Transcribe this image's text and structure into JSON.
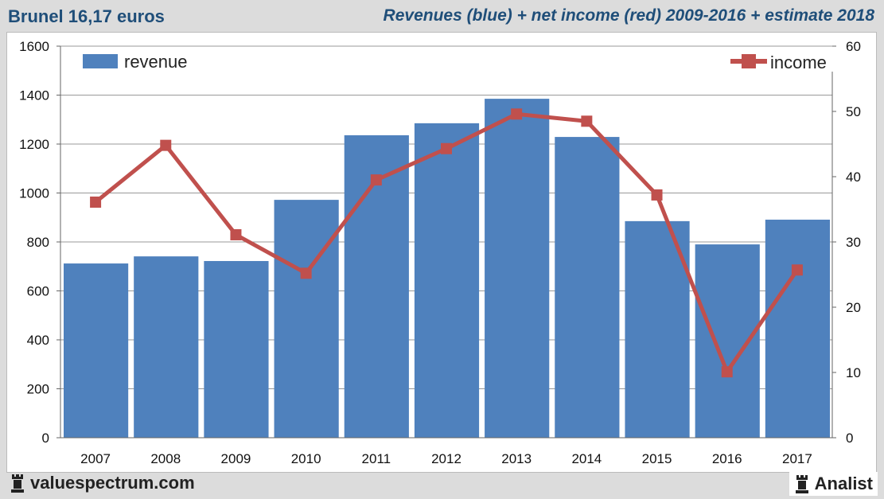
{
  "header": {
    "left": "Brunel 16,17 euros",
    "right": "Revenues (blue) + net income (red) 2009-2016 + estimate 2018"
  },
  "footer": {
    "site": "valuespectrum.com",
    "brand": "Analist"
  },
  "chart_data": {
    "type": "bar+line",
    "title": "Revenues (blue) + net income (red) 2009-2016 + estimate 2018",
    "categories": [
      "2007",
      "2008",
      "2009",
      "2010",
      "2011",
      "2012",
      "2013",
      "2014",
      "2015",
      "2016",
      "2017"
    ],
    "series": [
      {
        "name": "revenue",
        "type": "bar",
        "axis": "left",
        "color": "#4f81bd",
        "values": [
          712,
          741,
          722,
          972,
          1236,
          1285,
          1385,
          1229,
          885,
          790,
          891
        ]
      },
      {
        "name": "income",
        "type": "line",
        "axis": "right",
        "color": "#c0504d",
        "values": [
          36.1,
          44.8,
          31.1,
          25.2,
          39.5,
          44.3,
          49.6,
          48.5,
          37.2,
          10.1,
          25.7
        ]
      }
    ],
    "yleft": {
      "lim": [
        0,
        1600
      ],
      "ticks": [
        "0",
        "200",
        "400",
        "600",
        "800",
        "1000",
        "1200",
        "1400",
        "1600"
      ]
    },
    "yright": {
      "lim": [
        0,
        60
      ],
      "ticks": [
        "0",
        "10",
        "20",
        "30",
        "40",
        "50",
        "60"
      ]
    },
    "grid": true,
    "legend": {
      "revenue": "top-left",
      "income": "top-right"
    }
  }
}
